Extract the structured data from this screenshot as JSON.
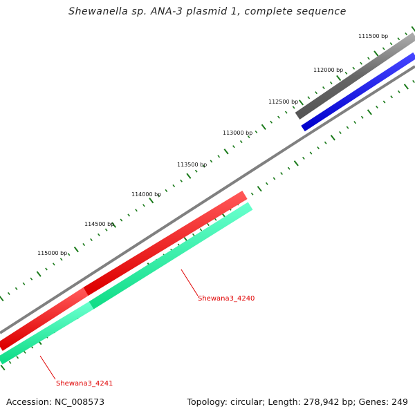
{
  "title": "Shewanella sp. ANA-3 plasmid 1, complete sequence",
  "footer": {
    "accession": "Accession: NC_008573",
    "summary": "Topology: circular; Length: 278,942 bp; Genes: 249"
  },
  "tick_labels": [
    "111500 bp",
    "112000 bp",
    "112500 bp",
    "113000 bp",
    "113500 bp",
    "114000 bp",
    "114500 bp",
    "115000 bp"
  ],
  "gene_labels": [
    "Shewana3_4240",
    "Shewana3_4241"
  ],
  "colors": {
    "backbone": "#808080",
    "dark_feature": "#555555",
    "blue_feature": "#0000ee",
    "red_feature": "#ee0000",
    "green_feature": "#22ee99",
    "tick": "#1a7a1a",
    "label_text": "#e00000"
  }
}
